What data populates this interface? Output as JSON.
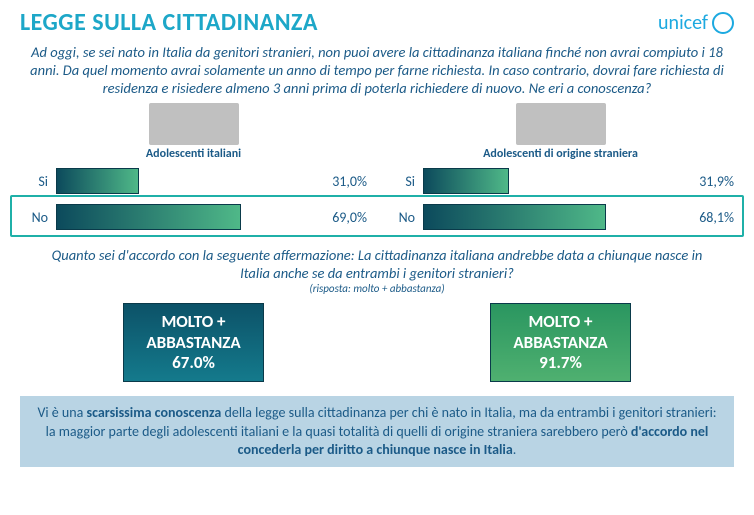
{
  "colors": {
    "title": "#1da7c8",
    "text": "#1b5a87",
    "bar_gradient_from": "#0c4a5c",
    "bar_gradient_to": "#4fb888",
    "highlight_border": "#1fb0a8",
    "box1_bg_from": "#0c5268",
    "box1_bg_to": "#147a8c",
    "box2_bg_from": "#2a9660",
    "box2_bg_to": "#4fb070",
    "footer_bg": "#b9d4e4",
    "logo": "#1ca9e0"
  },
  "header": {
    "title": "LEGGE SULLA CITTADINANZA",
    "logo_text": "unicef"
  },
  "intro": "Ad oggi, se sei nato in Italia da genitori stranieri, non puoi avere la cittadinanza italiana finché non avrai compiuto i 18 anni. Da quel momento avrai solamente un anno di tempo per farne richiesta. In caso contrario, dovrai fare richiesta di residenza e risiedere almeno 3 anni prima di poterla richiedere di nuovo. Ne eri a conoscenza?",
  "chart": {
    "max": 100,
    "left": {
      "group": "Adolescenti italiani",
      "rows": [
        {
          "label": "Si",
          "value": 31.0,
          "text": "31,0%"
        },
        {
          "label": "No",
          "value": 69.0,
          "text": "69,0%"
        }
      ]
    },
    "right": {
      "group": "Adolescenti di origine straniera",
      "rows": [
        {
          "label": "Si",
          "value": 31.9,
          "text": "31,9%"
        },
        {
          "label": "No",
          "value": 68.1,
          "text": "68,1%"
        }
      ]
    }
  },
  "q2": {
    "text": "Quanto sei d'accordo con la seguente affermazione: La cittadinanza italiana andrebbe data a chiunque nasce in Italia anche se da entrambi i genitori stranieri?",
    "sub": "(risposta: molto + abbastanza)"
  },
  "boxes": {
    "label_l1": "MOLTO +",
    "label_l2": "ABBASTANZA",
    "left_val": "67.0%",
    "right_val": "91.7%"
  },
  "footer": {
    "p1": "Vi è una ",
    "b1": "scarsissima conoscenza",
    "p2": " della legge sulla cittadinanza per chi è nato in Italia, ma da entrambi i genitori stranieri: la maggior parte degli adolescenti italiani e la quasi totalità di quelli di origine straniera sarebbero però ",
    "b2": "d'accordo nel concederla per diritto a chiunque nasce in Italia",
    "p3": "."
  }
}
